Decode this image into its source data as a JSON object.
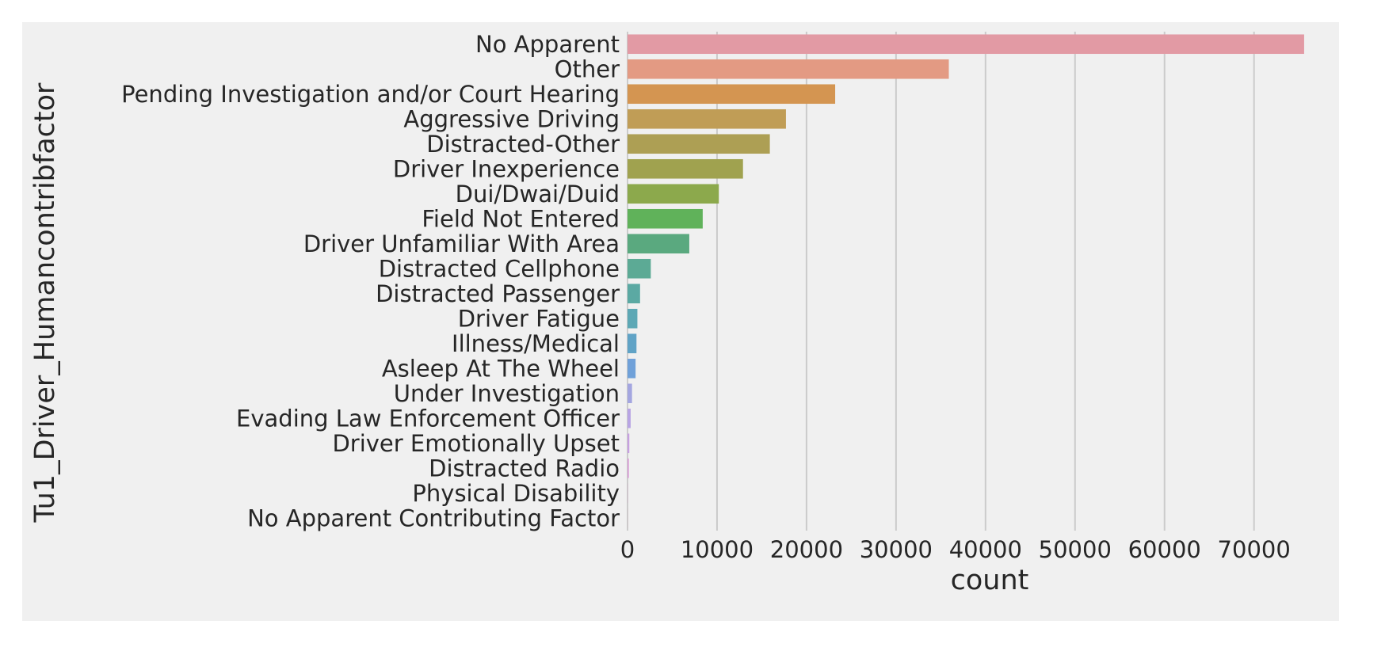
{
  "chart_data": {
    "type": "bar",
    "orientation": "horizontal",
    "xlabel": "count",
    "ylabel": "Tu1_Driver_Humancontribfactor",
    "xlim": [
      0,
      79500
    ],
    "xticks": [
      0,
      10000,
      20000,
      30000,
      40000,
      50000,
      60000,
      70000
    ],
    "xtick_labels": [
      "0",
      "10000",
      "20000",
      "30000",
      "40000",
      "50000",
      "60000",
      "70000"
    ],
    "grid": "vertical",
    "categories": [
      "No Apparent",
      "Other",
      "Pending Investigation and/or Court Hearing",
      "Aggressive Driving",
      "Distracted-Other",
      "Driver Inexperience",
      "Dui/Dwai/Duid",
      "Field Not Entered",
      "Driver Unfamiliar With Area",
      "Distracted Cellphone",
      "Distracted Passenger",
      "Driver Fatigue",
      "Illness/Medical",
      "Asleep At The Wheel",
      "Under Investigation",
      "Evading Law Enforcement Officer",
      "Driver Emotionally Upset",
      "Distracted Radio",
      "Physical Disability",
      "No Apparent Contributing Factor"
    ],
    "values": [
      75600,
      35900,
      23200,
      17700,
      15900,
      12900,
      10200,
      8400,
      6900,
      2600,
      1400,
      1100,
      1000,
      900,
      500,
      350,
      200,
      150,
      20,
      10
    ],
    "colors": [
      "#e29aa4",
      "#e39a83",
      "#d49551",
      "#c09d56",
      "#ad9f54",
      "#a0a24f",
      "#8ca94c",
      "#60b25a",
      "#5aa97f",
      "#5caa95",
      "#5ba9a3",
      "#5da8b5",
      "#60a3c6",
      "#70a1d9",
      "#a4a6e0",
      "#b8a4e4",
      "#c7a0e1",
      "#d89cd5",
      "#e29bc6",
      "#e39bb9"
    ]
  }
}
